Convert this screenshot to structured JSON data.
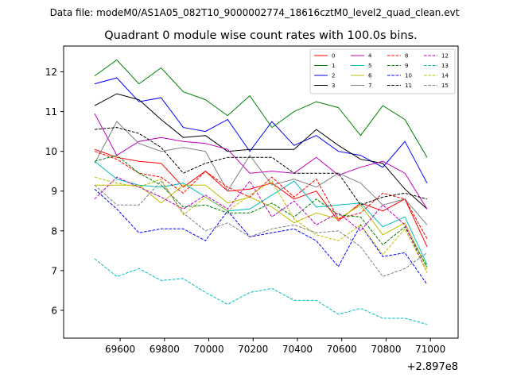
{
  "figure": {
    "suptitle": "Data file: modeM0/AS1A05_082T10_9000002774_18616cztM0_level2_quad_clean.evt"
  },
  "chart_data": {
    "type": "line",
    "title": "Quadrant 0 module wise count rates with 100.0s bins.",
    "xlabel": "",
    "ylabel": "",
    "x_offset_label": "+2.897e8",
    "x": [
      69485,
      69585,
      69685,
      69785,
      69885,
      69985,
      70085,
      70185,
      70285,
      70385,
      70485,
      70585,
      70685,
      70785,
      70885,
      70985
    ],
    "xlim": [
      69345,
      71125
    ],
    "ylim": [
      5.3,
      12.65
    ],
    "x_ticks": [
      69600,
      69800,
      70000,
      70200,
      70400,
      70600,
      70800,
      71000
    ],
    "x_tick_labels": [
      "69600",
      "69800",
      "70000",
      "70200",
      "70400",
      "70600",
      "70800",
      "71000"
    ],
    "y_ticks": [
      6,
      7,
      8,
      9,
      10,
      11,
      12
    ],
    "y_tick_labels": [
      "6",
      "7",
      "8",
      "9",
      "10",
      "11",
      "12"
    ],
    "legend_position": "upper right",
    "legend_columns": 4,
    "series": [
      {
        "name": "0",
        "color": "#ff0000",
        "dash": "solid",
        "values": [
          10.05,
          9.85,
          9.75,
          9.7,
          9.1,
          9.5,
          9.0,
          9.05,
          9.2,
          8.8,
          9.0,
          8.25,
          8.7,
          8.5,
          8.8,
          7.6
        ]
      },
      {
        "name": "1",
        "color": "#008000",
        "dash": "solid",
        "values": [
          11.9,
          12.3,
          11.7,
          12.1,
          11.5,
          11.3,
          10.9,
          11.4,
          10.6,
          11.0,
          11.25,
          11.1,
          10.4,
          11.15,
          10.8,
          9.85
        ]
      },
      {
        "name": "2",
        "color": "#0000ff",
        "dash": "solid",
        "values": [
          11.7,
          11.85,
          11.25,
          11.35,
          10.6,
          10.5,
          10.8,
          10.0,
          10.75,
          10.15,
          10.4,
          10.0,
          9.9,
          9.6,
          10.25,
          9.2
        ]
      },
      {
        "name": "3",
        "color": "#000000",
        "dash": "solid",
        "values": [
          11.15,
          11.45,
          11.3,
          10.8,
          10.35,
          10.4,
          10.0,
          10.05,
          10.05,
          10.05,
          10.55,
          10.15,
          9.8,
          9.7,
          9.05,
          8.55
        ]
      },
      {
        "name": "4",
        "color": "#bf00bf",
        "dash": "solid",
        "values": [
          10.95,
          9.9,
          10.25,
          10.35,
          10.25,
          10.2,
          10.05,
          9.45,
          9.5,
          9.45,
          9.85,
          9.4,
          9.6,
          9.75,
          9.45,
          8.55
        ]
      },
      {
        "name": "5",
        "color": "#00bfbf",
        "dash": "solid",
        "values": [
          9.75,
          9.3,
          9.15,
          9.1,
          9.2,
          8.85,
          8.5,
          8.55,
          8.9,
          9.25,
          8.6,
          8.65,
          8.7,
          8.1,
          8.35,
          7.15
        ]
      },
      {
        "name": "6",
        "color": "#bfbf00",
        "dash": "solid",
        "values": [
          9.15,
          9.15,
          9.15,
          8.7,
          9.15,
          9.15,
          8.7,
          8.85,
          8.6,
          8.2,
          8.45,
          8.3,
          8.65,
          7.9,
          8.2,
          7.05
        ]
      },
      {
        "name": "7",
        "color": "#808080",
        "dash": "solid",
        "values": [
          9.7,
          10.75,
          10.2,
          10.0,
          10.1,
          10.0,
          9.0,
          9.9,
          9.15,
          9.3,
          9.1,
          9.45,
          9.2,
          8.65,
          8.8,
          8.15
        ]
      },
      {
        "name": "8",
        "color": "#ff0000",
        "dash": "dashed",
        "values": [
          10.0,
          9.8,
          9.45,
          9.35,
          8.95,
          9.5,
          9.1,
          8.85,
          9.35,
          8.85,
          9.3,
          8.3,
          8.45,
          8.95,
          8.8,
          7.8
        ]
      },
      {
        "name": "9",
        "color": "#008000",
        "dash": "dashed",
        "values": [
          9.75,
          9.9,
          9.45,
          9.15,
          8.6,
          8.65,
          8.45,
          8.45,
          8.7,
          8.35,
          8.8,
          8.4,
          8.35,
          7.65,
          8.1,
          7.1
        ]
      },
      {
        "name": "10",
        "color": "#0000ff",
        "dash": "dashed",
        "values": [
          9.05,
          8.55,
          7.95,
          8.05,
          8.05,
          7.75,
          8.5,
          7.85,
          7.95,
          8.05,
          7.75,
          7.1,
          8.15,
          7.35,
          7.45,
          6.65
        ]
      },
      {
        "name": "11",
        "color": "#000000",
        "dash": "dashed",
        "values": [
          10.55,
          10.6,
          10.45,
          10.1,
          9.45,
          9.7,
          9.85,
          9.85,
          9.85,
          9.45,
          9.45,
          9.45,
          8.65,
          8.85,
          8.95,
          8.8
        ]
      },
      {
        "name": "12",
        "color": "#bf00bf",
        "dash": "dashed",
        "values": [
          8.8,
          9.35,
          9.1,
          8.85,
          8.55,
          8.9,
          8.55,
          9.25,
          8.35,
          8.75,
          8.15,
          8.45,
          8.0,
          8.65,
          8.15,
          6.95
        ]
      },
      {
        "name": "13",
        "color": "#00bfbf",
        "dash": "dashed",
        "values": [
          7.3,
          6.85,
          7.05,
          6.75,
          6.8,
          6.45,
          6.15,
          6.45,
          6.55,
          6.25,
          6.25,
          5.9,
          6.05,
          5.8,
          5.8,
          5.65
        ]
      },
      {
        "name": "14",
        "color": "#bfbf00",
        "dash": "dashed",
        "values": [
          9.35,
          9.2,
          9.1,
          9.3,
          8.4,
          8.85,
          8.5,
          8.9,
          9.25,
          8.3,
          7.9,
          7.75,
          8.15,
          7.4,
          8.05,
          6.95
        ]
      },
      {
        "name": "15",
        "color": "#808080",
        "dash": "dashed",
        "values": [
          9.15,
          8.65,
          8.65,
          9.25,
          8.45,
          8.0,
          8.2,
          7.85,
          8.05,
          8.15,
          7.95,
          8.0,
          7.6,
          6.85,
          7.05,
          7.45
        ]
      }
    ]
  }
}
